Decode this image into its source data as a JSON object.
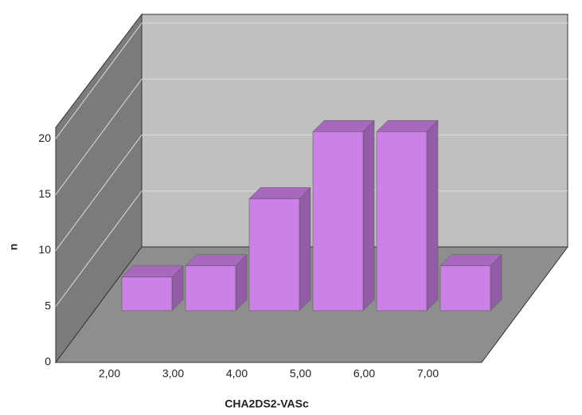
{
  "chart_data": {
    "type": "bar3d",
    "x_label": "CHA2DS2-VASc",
    "y_label": "n",
    "categories": [
      "2,00",
      "3,00",
      "4,00",
      "5,00",
      "6,00",
      "7,00"
    ],
    "values": [
      3,
      4,
      10,
      16,
      16,
      4
    ],
    "color": "#cc80e8",
    "ylim": [
      0,
      21
    ],
    "yticks": [
      0,
      5,
      10,
      15,
      20
    ],
    "grid": true
  }
}
